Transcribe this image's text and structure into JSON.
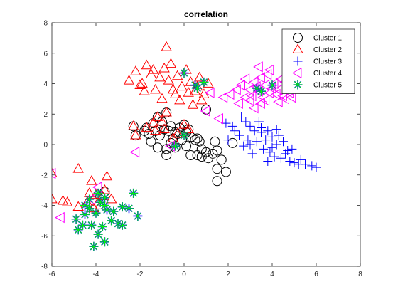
{
  "chart_data": {
    "type": "scatter",
    "title": "correlation",
    "xlabel": "",
    "ylabel": "",
    "xlim": [
      -6,
      8
    ],
    "ylim": [
      -8,
      8
    ],
    "xticks": [
      -6,
      -4,
      -2,
      0,
      2,
      4,
      6,
      8
    ],
    "yticks": [
      -8,
      -6,
      -4,
      -2,
      0,
      2,
      4,
      6,
      8
    ],
    "grid": false,
    "legend_position": "top-right",
    "series": [
      {
        "name": "Cluster 1",
        "marker": "circle",
        "color": "#000000",
        "points": [
          [
            -1.7,
            1.1
          ],
          [
            -1.4,
            1.4
          ],
          [
            -1.2,
            1.8
          ],
          [
            -1.0,
            1.5
          ],
          [
            -0.8,
            2.1
          ],
          [
            -1.3,
            0.9
          ],
          [
            -0.9,
            1.0
          ],
          [
            -0.6,
            1.2
          ],
          [
            -0.4,
            0.8
          ],
          [
            -0.2,
            1.1
          ],
          [
            0.0,
            1.3
          ],
          [
            0.2,
            1.0
          ],
          [
            -2.3,
            1.2
          ],
          [
            -2.2,
            0.6
          ],
          [
            -1.8,
            0.9
          ],
          [
            -1.6,
            0.7
          ],
          [
            -1.1,
            0.6
          ],
          [
            -0.7,
            0.9
          ],
          [
            -0.5,
            0.4
          ],
          [
            -0.3,
            0.7
          ],
          [
            0.1,
            0.8
          ],
          [
            0.3,
            0.5
          ],
          [
            -0.1,
            0.3
          ],
          [
            -1.5,
            0.2
          ],
          [
            -1.2,
            -0.2
          ],
          [
            -0.8,
            -0.3
          ],
          [
            -0.6,
            0.1
          ],
          [
            0.5,
            0.3
          ],
          [
            0.6,
            0.4
          ],
          [
            0.7,
            0.2
          ],
          [
            0.8,
            -0.3
          ],
          [
            1.0,
            -0.5
          ],
          [
            1.3,
            -0.6
          ],
          [
            1.5,
            -0.4
          ],
          [
            1.7,
            -1.0
          ],
          [
            1.5,
            -1.6
          ],
          [
            1.9,
            -1.8
          ],
          [
            1.5,
            -2.4
          ],
          [
            0.6,
            -0.7
          ],
          [
            0.8,
            -0.8
          ],
          [
            0.3,
            -0.7
          ],
          [
            -0.4,
            -0.2
          ],
          [
            0.1,
            -0.1
          ],
          [
            1.1,
            -0.9
          ],
          [
            2.2,
            0.1
          ],
          [
            -0.8,
            -0.7
          ],
          [
            1.4,
            0.2
          ],
          [
            1.0,
            2.3
          ],
          [
            -3.8,
            -3.4
          ],
          [
            -3.6,
            -3.1
          ]
        ]
      },
      {
        "name": "Cluster 2",
        "marker": "triangle",
        "color": "#ff0000",
        "points": [
          [
            -2.5,
            4.2
          ],
          [
            -2.2,
            4.8
          ],
          [
            -1.9,
            4.0
          ],
          [
            -1.7,
            5.2
          ],
          [
            -1.5,
            4.6
          ],
          [
            -1.3,
            3.6
          ],
          [
            -1.1,
            4.4
          ],
          [
            -0.9,
            5.0
          ],
          [
            -0.7,
            4.2
          ],
          [
            -0.5,
            3.6
          ],
          [
            -0.3,
            4.5
          ],
          [
            -0.1,
            3.8
          ],
          [
            0.1,
            4.9
          ],
          [
            0.3,
            4.1
          ],
          [
            0.5,
            3.5
          ],
          [
            0.7,
            4.4
          ],
          [
            0.9,
            3.3
          ],
          [
            1.1,
            4.0
          ],
          [
            -0.8,
            6.4
          ],
          [
            -1.8,
            3.5
          ],
          [
            -1.0,
            3.0
          ],
          [
            -0.2,
            2.9
          ],
          [
            0.4,
            2.6
          ],
          [
            0.8,
            2.9
          ],
          [
            -1.4,
            4.9
          ],
          [
            -2.0,
            3.9
          ],
          [
            -0.6,
            5.3
          ],
          [
            0.2,
            3.4
          ],
          [
            -0.4,
            3.3
          ],
          [
            0.6,
            3.8
          ],
          [
            -2.3,
            1.2
          ],
          [
            -1.7,
            1.1
          ],
          [
            -1.2,
            1.8
          ],
          [
            -0.8,
            2.1
          ],
          [
            -1.3,
            0.9
          ],
          [
            -0.9,
            1.0
          ],
          [
            -0.5,
            0.4
          ],
          [
            0.0,
            1.3
          ],
          [
            0.2,
            1.0
          ],
          [
            -0.3,
            0.7
          ],
          [
            -1.0,
            1.5
          ],
          [
            -1.4,
            1.4
          ],
          [
            -2.2,
            0.6
          ],
          [
            -6.0,
            -3.6
          ],
          [
            -5.3,
            -3.8
          ],
          [
            -4.8,
            -1.6
          ],
          [
            -4.8,
            -4.1
          ],
          [
            -4.4,
            -3.8
          ],
          [
            -4.2,
            -2.4
          ],
          [
            -4.0,
            -3.3
          ],
          [
            -3.9,
            -3.8
          ],
          [
            -3.7,
            -3.4
          ],
          [
            -3.6,
            -3.0
          ],
          [
            -3.5,
            -2.1
          ],
          [
            -4.1,
            -4.2
          ],
          [
            -3.8,
            -4.0
          ],
          [
            -6.0,
            -1.9
          ],
          [
            -5.5,
            -3.7
          ],
          [
            -3.3,
            -3.6
          ],
          [
            -4.3,
            -3.2
          ]
        ]
      },
      {
        "name": "Cluster 3",
        "marker": "plus",
        "color": "#0000ff",
        "points": [
          [
            1.9,
            1.4
          ],
          [
            2.2,
            1.2
          ],
          [
            2.6,
            1.8
          ],
          [
            2.8,
            1.5
          ],
          [
            3.0,
            1.2
          ],
          [
            3.2,
            0.9
          ],
          [
            3.4,
            1.5
          ],
          [
            3.5,
            0.8
          ],
          [
            3.7,
            0.3
          ],
          [
            3.8,
            0.9
          ],
          [
            4.0,
            0.5
          ],
          [
            4.2,
            0.0
          ],
          [
            4.3,
            0.6
          ],
          [
            4.5,
            0.2
          ],
          [
            4.6,
            -0.6
          ],
          [
            4.8,
            -1.1
          ],
          [
            5.0,
            -1.2
          ],
          [
            5.2,
            -1.3
          ],
          [
            5.5,
            -1.3
          ],
          [
            5.8,
            -1.4
          ],
          [
            6.0,
            -1.5
          ],
          [
            3.0,
            0.0
          ],
          [
            3.3,
            0.2
          ],
          [
            3.6,
            -0.3
          ],
          [
            3.9,
            -0.5
          ],
          [
            4.1,
            -0.8
          ],
          [
            2.5,
            0.6
          ],
          [
            2.0,
            0.3
          ],
          [
            2.7,
            -0.1
          ],
          [
            4.7,
            -0.4
          ],
          [
            4.4,
            -0.9
          ],
          [
            3.1,
            -0.6
          ],
          [
            2.9,
            0.3
          ],
          [
            5.3,
            -1.0
          ],
          [
            3.5,
            1.1
          ],
          [
            4.0,
            -0.2
          ],
          [
            2.3,
            0.9
          ],
          [
            3.8,
            -1.1
          ],
          [
            4.9,
            -0.3
          ],
          [
            4.2,
            1.0
          ]
        ]
      },
      {
        "name": "Cluster 4",
        "marker": "triangle-left",
        "color": "#ff00ff",
        "points": [
          [
            1.8,
            3.1
          ],
          [
            2.1,
            3.3
          ],
          [
            2.4,
            3.6
          ],
          [
            2.6,
            3.9
          ],
          [
            2.8,
            4.3
          ],
          [
            3.0,
            3.6
          ],
          [
            3.1,
            3.2
          ],
          [
            3.2,
            4.1
          ],
          [
            3.3,
            3.8
          ],
          [
            3.4,
            3.5
          ],
          [
            3.5,
            4.4
          ],
          [
            3.6,
            3.1
          ],
          [
            3.7,
            3.9
          ],
          [
            3.8,
            4.6
          ],
          [
            3.9,
            3.4
          ],
          [
            4.0,
            3.7
          ],
          [
            4.1,
            4.0
          ],
          [
            4.2,
            3.3
          ],
          [
            4.3,
            3.6
          ],
          [
            4.5,
            3.2
          ],
          [
            4.6,
            3.0
          ],
          [
            4.8,
            3.4
          ],
          [
            4.9,
            3.1
          ],
          [
            3.0,
            2.9
          ],
          [
            3.5,
            2.7
          ],
          [
            3.2,
            2.4
          ],
          [
            3.7,
            2.9
          ],
          [
            2.8,
            3.1
          ],
          [
            4.3,
            2.8
          ],
          [
            4.4,
            4.3
          ],
          [
            3.9,
            4.9
          ],
          [
            3.4,
            5.1
          ],
          [
            1.2,
            3.4
          ],
          [
            1.0,
            2.2
          ],
          [
            1.6,
            1.7
          ],
          [
            -2.2,
            -0.5
          ],
          [
            -0.6,
            -0.1
          ],
          [
            -5.6,
            -4.8
          ],
          [
            -6.0,
            -1.9
          ],
          [
            -4.2,
            -3.6
          ],
          [
            -3.9,
            -2.8
          ],
          [
            4.6,
            4.1
          ],
          [
            2.5,
            2.7
          ]
        ]
      },
      {
        "name": "Cluster 5",
        "marker": "asterisk",
        "color": "#00ff00",
        "edge_color": "#0000ff",
        "points": [
          [
            -4.9,
            -4.9
          ],
          [
            -4.8,
            -5.6
          ],
          [
            -4.5,
            -4.6
          ],
          [
            -4.2,
            -5.3
          ],
          [
            -4.1,
            -6.7
          ],
          [
            -3.9,
            -5.9
          ],
          [
            -3.7,
            -5.4
          ],
          [
            -3.6,
            -6.4
          ],
          [
            -3.5,
            -4.3
          ],
          [
            -3.3,
            -5.0
          ],
          [
            -3.0,
            -5.2
          ],
          [
            -2.8,
            -4.1
          ],
          [
            -2.5,
            -4.2
          ],
          [
            -2.3,
            -3.2
          ],
          [
            -2.1,
            -4.7
          ],
          [
            -4.3,
            -3.6
          ],
          [
            -3.8,
            -3.8
          ],
          [
            -3.6,
            -4.0
          ],
          [
            -4.5,
            -4.0
          ],
          [
            -3.9,
            -3.2
          ],
          [
            -2.8,
            -5.3
          ],
          [
            -3.2,
            -4.4
          ],
          [
            -4.0,
            -4.5
          ],
          [
            -4.6,
            -5.3
          ],
          [
            0.0,
            4.7
          ],
          [
            0.5,
            3.9
          ],
          [
            0.9,
            4.1
          ],
          [
            0.6,
            3.7
          ],
          [
            -0.4,
            -0.1
          ],
          [
            0.0,
            0.6
          ],
          [
            3.5,
            3.5
          ],
          [
            4.0,
            3.9
          ],
          [
            3.3,
            3.7
          ],
          [
            -3.6,
            -3.5
          ],
          [
            -4.3,
            -4.2
          ]
        ]
      }
    ]
  }
}
